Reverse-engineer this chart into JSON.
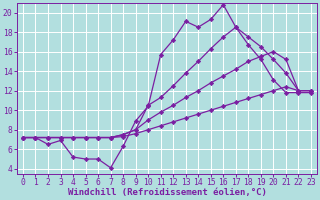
{
  "background_color": "#b2dfdf",
  "grid_color": "#c8e8e8",
  "line_color": "#7b1fa2",
  "marker": "D",
  "markersize": 2.2,
  "linewidth": 0.9,
  "xlabel": "Windchill (Refroidissement éolien,°C)",
  "xlabel_fontsize": 6.5,
  "tick_fontsize": 5.8,
  "xlim": [
    -0.5,
    23.5
  ],
  "ylim": [
    3.5,
    21.0
  ],
  "yticks": [
    4,
    6,
    8,
    10,
    12,
    14,
    16,
    18,
    20
  ],
  "xticks": [
    0,
    1,
    2,
    3,
    4,
    5,
    6,
    7,
    8,
    9,
    10,
    11,
    12,
    13,
    14,
    15,
    16,
    17,
    18,
    19,
    20,
    21,
    22,
    23
  ],
  "series": [
    [
      7.2,
      7.2,
      6.5,
      6.9,
      5.2,
      5.0,
      5.0,
      4.1,
      6.3,
      8.9,
      10.4,
      15.7,
      17.2,
      19.1,
      18.5,
      19.3,
      20.8,
      18.5,
      16.7,
      15.2,
      13.1,
      11.8,
      11.8,
      11.8
    ],
    [
      7.2,
      7.2,
      7.2,
      7.2,
      7.2,
      7.2,
      7.2,
      7.2,
      7.5,
      8.0,
      10.5,
      11.3,
      12.5,
      13.8,
      15.0,
      16.3,
      17.5,
      18.5,
      17.5,
      16.5,
      15.2,
      13.8,
      12.0,
      12.0
    ],
    [
      7.2,
      7.2,
      7.2,
      7.2,
      7.2,
      7.2,
      7.2,
      7.2,
      7.5,
      8.0,
      9.0,
      9.8,
      10.5,
      11.3,
      12.0,
      12.8,
      13.5,
      14.2,
      15.0,
      15.5,
      16.0,
      15.2,
      12.0,
      12.0
    ],
    [
      7.2,
      7.2,
      7.2,
      7.2,
      7.2,
      7.2,
      7.2,
      7.2,
      7.3,
      7.6,
      8.0,
      8.4,
      8.8,
      9.2,
      9.6,
      10.0,
      10.4,
      10.8,
      11.2,
      11.6,
      12.0,
      12.4,
      12.0,
      12.0
    ]
  ]
}
